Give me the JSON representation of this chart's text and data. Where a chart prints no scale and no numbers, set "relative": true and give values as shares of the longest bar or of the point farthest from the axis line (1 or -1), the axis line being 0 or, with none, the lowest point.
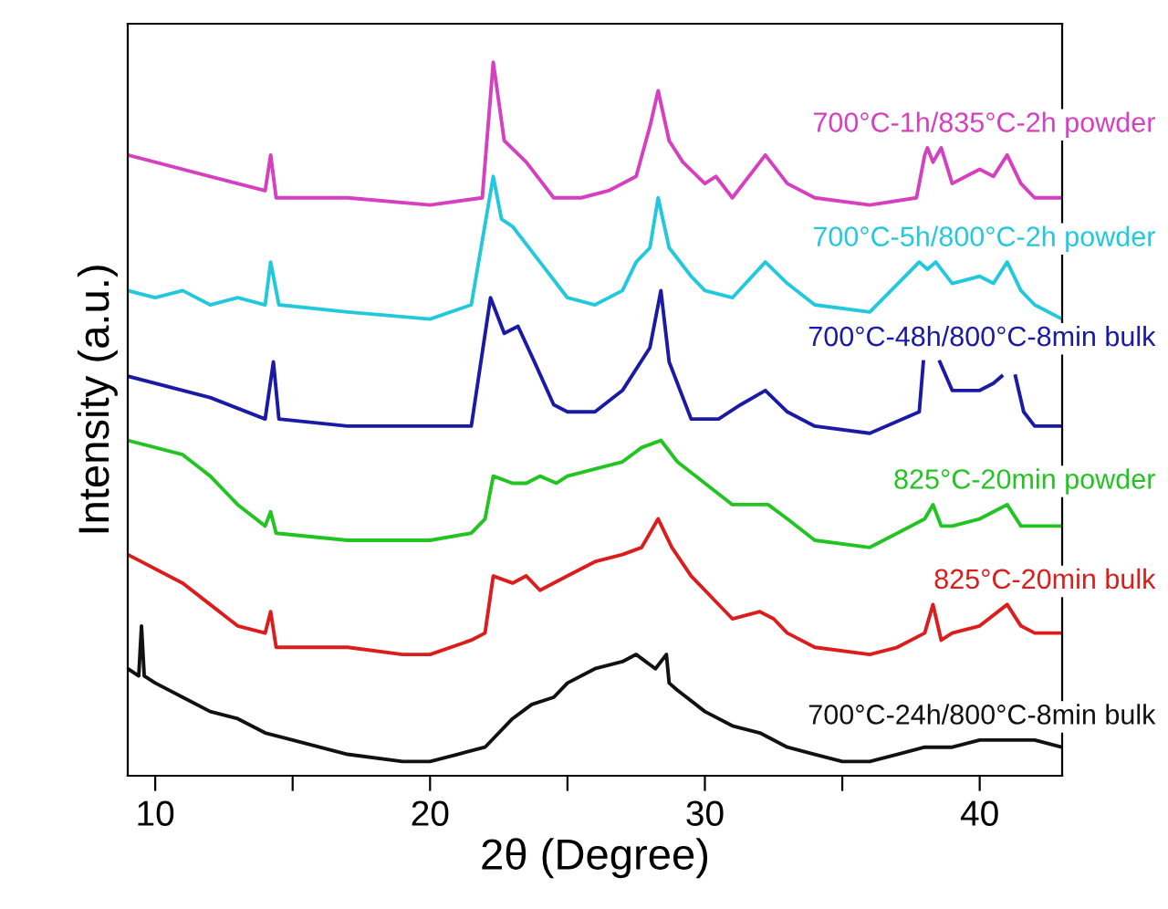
{
  "chart_data": {
    "type": "line",
    "relative": true,
    "xlabel": "2θ (Degree)",
    "ylabel": "Intensity (a.u.)",
    "xlim": [
      9,
      43
    ],
    "xticks": [
      10,
      {
        "value": 15,
        "label": null
      },
      20,
      {
        "value": 25,
        "label": null
      },
      30,
      {
        "value": 35,
        "label": null
      },
      40
    ],
    "series": [
      {
        "name": "700°C-1h/835°C-2h powder",
        "color": "#d63fbf",
        "x": [
          9,
          12,
          14,
          14.2,
          14.4,
          17,
          20,
          21.9,
          22.3,
          22.7,
          23.5,
          24.5,
          25.5,
          26.5,
          27.5,
          28,
          28.3,
          28.7,
          29.2,
          30,
          30.4,
          31,
          32.2,
          33,
          34,
          36,
          37.7,
          38,
          38.1,
          38.3,
          38.6,
          39,
          39.5,
          40,
          40.5,
          41,
          41.5,
          42,
          43
        ],
        "values": [
          0.87,
          0.84,
          0.82,
          0.87,
          0.81,
          0.81,
          0.8,
          0.81,
          1.0,
          0.89,
          0.86,
          0.81,
          0.81,
          0.82,
          0.84,
          0.91,
          0.96,
          0.89,
          0.86,
          0.83,
          0.84,
          0.81,
          0.87,
          0.83,
          0.81,
          0.8,
          0.81,
          0.87,
          0.88,
          0.86,
          0.88,
          0.83,
          0.84,
          0.85,
          0.84,
          0.87,
          0.83,
          0.81,
          0.81
        ]
      },
      {
        "name": "700°C-5h/800°C-2h powder",
        "color": "#22c8dc",
        "x": [
          9,
          10,
          11,
          12,
          13,
          14,
          14.2,
          14.5,
          17,
          20,
          21.5,
          22.3,
          22.6,
          23,
          24,
          25,
          26,
          27,
          27.5,
          28,
          28.3,
          28.7,
          29.5,
          30,
          31,
          32.2,
          33,
          34,
          36,
          37.8,
          38.1,
          38.4,
          39,
          40,
          40.5,
          41,
          41.5,
          42,
          43
        ],
        "values": [
          0.68,
          0.67,
          0.68,
          0.66,
          0.67,
          0.66,
          0.72,
          0.66,
          0.65,
          0.64,
          0.66,
          0.84,
          0.78,
          0.77,
          0.72,
          0.67,
          0.66,
          0.68,
          0.72,
          0.74,
          0.81,
          0.74,
          0.7,
          0.68,
          0.67,
          0.72,
          0.69,
          0.66,
          0.65,
          0.72,
          0.71,
          0.72,
          0.69,
          0.7,
          0.69,
          0.72,
          0.68,
          0.66,
          0.64
        ]
      },
      {
        "name": "700°C-48h/800°C-8min bulk",
        "color": "#1a1aa6",
        "x": [
          9,
          12,
          14,
          14.3,
          14.5,
          17,
          20,
          21.5,
          22.2,
          22.7,
          23.2,
          23.8,
          24.5,
          25,
          26,
          27,
          28,
          28.4,
          28.7,
          29.5,
          30.5,
          31.3,
          32.2,
          33,
          34,
          36,
          37.8,
          37.95,
          38.2,
          38.55,
          39,
          39.5,
          40,
          40.5,
          40.8,
          41,
          41.3,
          41.6,
          42,
          43
        ],
        "values": [
          0.56,
          0.53,
          0.5,
          0.58,
          0.5,
          0.49,
          0.49,
          0.49,
          0.67,
          0.62,
          0.63,
          0.58,
          0.52,
          0.51,
          0.51,
          0.54,
          0.6,
          0.68,
          0.58,
          0.5,
          0.5,
          0.52,
          0.54,
          0.51,
          0.49,
          0.48,
          0.51,
          0.58,
          null,
          0.58,
          0.54,
          0.54,
          0.54,
          0.55,
          0.56,
          null,
          0.56,
          0.51,
          0.49,
          0.49
        ]
      },
      {
        "name": "825°C-20min powder",
        "color": "#22c422",
        "x": [
          9,
          11,
          12,
          13,
          14,
          14.2,
          14.4,
          17,
          19,
          20,
          21.5,
          22,
          22.3,
          23,
          23.5,
          24,
          24.6,
          25,
          26,
          27,
          27.7,
          28.4,
          29,
          30,
          31,
          32.3,
          33,
          34,
          36,
          37,
          38,
          38.3,
          38.6,
          39,
          40,
          41,
          41.5,
          42,
          43
        ],
        "values": [
          0.47,
          0.45,
          0.42,
          0.38,
          0.35,
          0.37,
          0.34,
          0.33,
          0.33,
          0.33,
          0.34,
          0.36,
          0.42,
          0.41,
          0.41,
          0.42,
          0.41,
          0.42,
          0.43,
          0.44,
          0.46,
          0.47,
          0.44,
          0.41,
          0.38,
          0.38,
          0.36,
          0.33,
          0.32,
          0.34,
          0.36,
          0.38,
          0.35,
          0.35,
          0.36,
          0.38,
          0.35,
          0.35,
          0.35
        ]
      },
      {
        "name": "825°C-20min bulk",
        "color": "#dd1c1c",
        "x": [
          9,
          11,
          12,
          13,
          14,
          14.2,
          14.4,
          17,
          19,
          20,
          21.5,
          22,
          22.3,
          23,
          23.5,
          24,
          25,
          26,
          27,
          27.7,
          28.3,
          28.8,
          29.5,
          30,
          31,
          32,
          32.5,
          33,
          34,
          36,
          37,
          38,
          38.3,
          38.6,
          39,
          40,
          41,
          41.5,
          42,
          43
        ],
        "values": [
          0.31,
          0.27,
          0.24,
          0.21,
          0.2,
          0.23,
          0.18,
          0.18,
          0.17,
          0.17,
          0.19,
          0.2,
          0.28,
          0.27,
          0.28,
          0.26,
          0.28,
          0.3,
          0.31,
          0.32,
          0.36,
          0.32,
          0.28,
          0.26,
          0.22,
          0.23,
          0.22,
          0.2,
          0.18,
          0.17,
          0.18,
          0.2,
          0.24,
          0.19,
          0.2,
          0.21,
          0.24,
          0.21,
          0.2,
          0.2
        ]
      },
      {
        "name": "700°C-24h/800°C-8min bulk",
        "color": "#111111",
        "x": [
          9,
          9.4,
          9.5,
          9.6,
          10,
          11,
          12,
          13,
          14,
          15,
          17,
          19,
          20,
          21,
          22,
          23,
          23.7,
          24.5,
          25,
          26,
          27,
          27.5,
          28.2,
          28.6,
          28.7,
          29,
          30,
          31,
          32,
          33,
          34,
          35,
          36,
          37,
          38,
          39,
          40,
          41,
          42,
          43
        ],
        "values": [
          0.15,
          0.14,
          0.21,
          0.14,
          0.13,
          0.11,
          0.09,
          0.08,
          0.06,
          0.05,
          0.03,
          0.02,
          0.02,
          0.03,
          0.04,
          0.08,
          0.1,
          0.11,
          0.13,
          0.15,
          0.16,
          0.17,
          0.15,
          0.17,
          0.13,
          0.12,
          0.09,
          0.07,
          0.06,
          0.04,
          0.03,
          0.02,
          0.02,
          0.03,
          0.04,
          0.04,
          0.05,
          0.05,
          0.05,
          0.04
        ]
      }
    ]
  }
}
